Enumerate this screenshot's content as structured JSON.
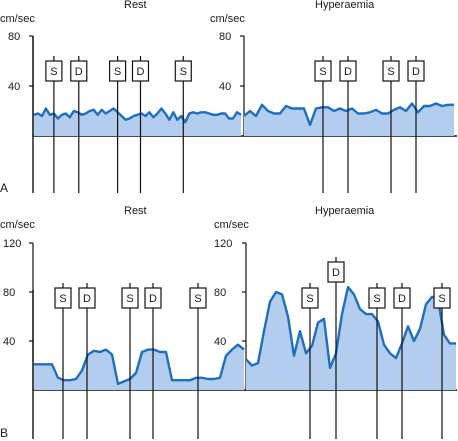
{
  "chart_data": [
    {
      "panel": "A",
      "type": "area",
      "ylabel": "cm/sec",
      "yticks": [
        40,
        80
      ],
      "ylim": [
        0,
        80
      ],
      "colors": {
        "line": "#1f6fbf",
        "fill": "#b3cdee"
      },
      "halves": [
        {
          "title": "Rest",
          "x": [
            0,
            4,
            8,
            12,
            16,
            20,
            24,
            28,
            32,
            36,
            40,
            44,
            48,
            52,
            56,
            60,
            64,
            68,
            72,
            76,
            80,
            84,
            88,
            92,
            96,
            100,
            104,
            108,
            112,
            116,
            120,
            124,
            128,
            132,
            136,
            140,
            144,
            148,
            152,
            156,
            160,
            164,
            168,
            172,
            176,
            180,
            184,
            188,
            192,
            196,
            200,
            204,
            208
          ],
          "values": [
            17,
            18,
            16,
            22,
            17,
            18,
            14,
            17,
            18,
            15,
            20,
            19,
            17,
            18,
            20,
            21,
            17,
            21,
            18,
            20,
            22,
            19,
            16,
            13,
            14,
            16,
            17,
            18,
            16,
            19,
            15,
            18,
            22,
            18,
            13,
            19,
            13,
            16,
            11,
            18,
            19,
            18,
            19,
            19,
            18,
            17,
            17,
            18,
            18,
            14,
            14,
            19,
            17
          ],
          "markers": [
            {
              "label": "S",
              "x": 20
            },
            {
              "label": "D",
              "x": 45
            },
            {
              "label": "S",
              "x": 84
            },
            {
              "label": "D",
              "x": 107
            },
            {
              "label": "S",
              "x": 150
            }
          ]
        },
        {
          "title": "Hyperaemia",
          "x": [
            0,
            6,
            12,
            18,
            24,
            30,
            36,
            42,
            48,
            54,
            60,
            66,
            72,
            78,
            84,
            90,
            96,
            102,
            108,
            114,
            120,
            126,
            132,
            138,
            144,
            150,
            156,
            162,
            168,
            174,
            180,
            186,
            192,
            198,
            204,
            210
          ],
          "values": [
            16,
            20,
            16,
            25,
            20,
            18,
            18,
            24,
            22,
            22,
            22,
            9,
            22,
            23,
            23,
            20,
            22,
            20,
            22,
            18,
            18,
            19,
            21,
            18,
            18,
            21,
            23,
            20,
            26,
            19,
            24,
            24,
            26,
            24,
            25,
            25
          ],
          "markers": [
            {
              "label": "S",
              "x": 79
            },
            {
              "label": "D",
              "x": 104
            },
            {
              "label": "S",
              "x": 147
            },
            {
              "label": "D",
              "x": 172
            }
          ]
        }
      ]
    },
    {
      "panel": "B",
      "type": "area",
      "ylabel": "cm/sec",
      "colors": {
        "line": "#1f6fbf",
        "fill": "#b3cdee"
      },
      "halves": [
        {
          "title": "Rest",
          "yticks": [
            40,
            80,
            120
          ],
          "ylim": [
            0,
            120
          ],
          "x": [
            0,
            6,
            12,
            18,
            24,
            30,
            36,
            42,
            48,
            54,
            60,
            66,
            72,
            78,
            84,
            90,
            96,
            102,
            108,
            114,
            120,
            126,
            132,
            138,
            144,
            150,
            156,
            162,
            168,
            174,
            180,
            186,
            192,
            198,
            204,
            210
          ],
          "values": [
            21,
            21,
            21,
            21,
            10,
            8,
            8,
            9,
            16,
            29,
            32,
            31,
            33,
            29,
            5,
            7,
            9,
            14,
            31,
            33,
            33,
            31,
            31,
            8,
            8,
            8,
            8,
            10,
            10,
            9,
            9,
            10,
            28,
            33,
            37,
            33
          ],
          "markers": [
            {
              "label": "S",
              "x": 29
            },
            {
              "label": "D",
              "x": 53
            },
            {
              "label": "S",
              "x": 96
            },
            {
              "label": "D",
              "x": 119
            },
            {
              "label": "S",
              "x": 164
            }
          ]
        },
        {
          "title": "Hyperaemia",
          "yticks": [
            40,
            80,
            120
          ],
          "ylim": [
            0,
            120
          ],
          "x": [
            0,
            6,
            12,
            18,
            24,
            30,
            36,
            42,
            48,
            54,
            60,
            66,
            72,
            78,
            84,
            90,
            96,
            102,
            108,
            114,
            120,
            126,
            132,
            138,
            144,
            150,
            156,
            162,
            168,
            174,
            180,
            186,
            192,
            198,
            204,
            210
          ],
          "values": [
            25,
            20,
            22,
            48,
            72,
            80,
            78,
            60,
            28,
            48,
            30,
            36,
            55,
            58,
            18,
            30,
            62,
            84,
            78,
            66,
            62,
            62,
            56,
            37,
            30,
            26,
            38,
            52,
            40,
            50,
            70,
            76,
            74,
            45,
            38,
            38
          ],
          "markers": [
            {
              "label": "S",
              "x": 64
            },
            {
              "label": "D",
              "x": 90,
              "raised": true
            },
            {
              "label": "S",
              "x": 131
            },
            {
              "label": "D",
              "x": 156
            },
            {
              "label": "S",
              "x": 196
            }
          ]
        }
      ]
    }
  ]
}
